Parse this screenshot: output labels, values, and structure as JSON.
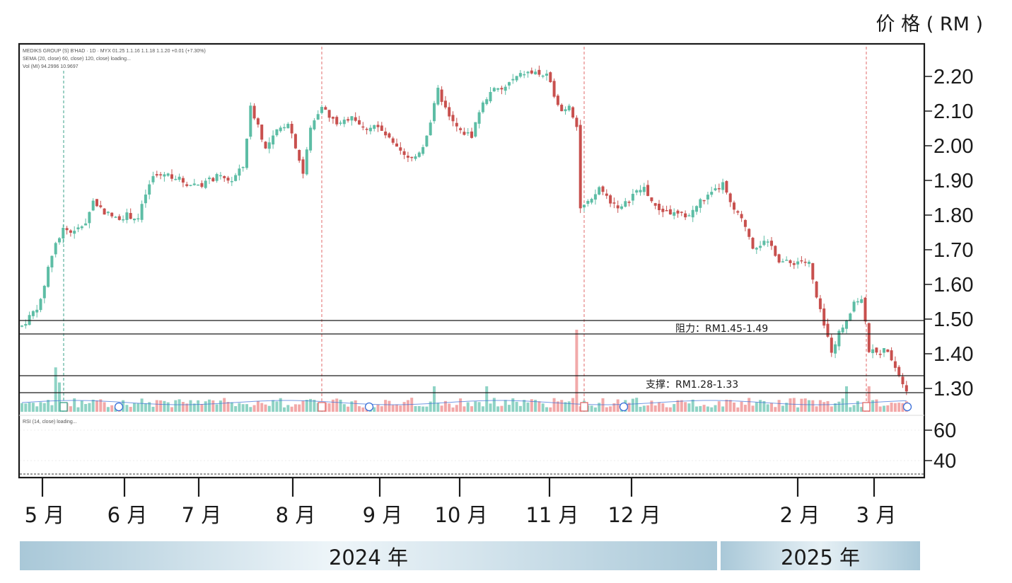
{
  "price_unit_label": "价 格 ( RM )",
  "chart_header": [
    "MEDIKS GROUP (S) B'HAD · 1D · MYX 01.25 1.1.16 1.1.18 1.1.20 +0.01 (+7.30%)",
    "SEMA (20, close) 60, close) 120, close) loading...",
    "Vol (MI) 94.2996 10.9697"
  ],
  "rsi_header": "RSI (14, close) loading...",
  "annotations": {
    "resistance": "阻力：RM1.45-1.49",
    "support": "支撑：RM1.28-1.33"
  },
  "event_markers": [
    "E",
    "D",
    "D",
    "D",
    "D",
    "D",
    "D",
    "D",
    "D",
    "D",
    "E"
  ],
  "year_bands": [
    {
      "label": "2024 年"
    },
    {
      "label": "2025 年"
    }
  ],
  "colors": {
    "up": "#5dbda5",
    "down": "#c8504e",
    "vol_up": "#8fd3c5",
    "vol_down": "#f2a9a9",
    "marker": "#3a6fd8",
    "band_light": "#e8f2f7",
    "band_dark": "#a9c8d8"
  },
  "chart_data": {
    "type": "candlestick",
    "title": "",
    "xlabel": "",
    "ylabel": "价格 (RM)",
    "ylim": [
      1.28,
      2.25
    ],
    "price_ticks": [
      "2.20",
      "2.10",
      "2.00",
      "1.90",
      "1.80",
      "1.70",
      "1.60",
      "1.50",
      "1.40",
      "1.30"
    ],
    "rsi_ticks": [
      "60",
      "40"
    ],
    "month_labels": [
      "5 月",
      "6 月",
      "7 月",
      "8 月",
      "9 月",
      "10 月",
      "11 月",
      "12 月",
      "2 月",
      "3 月"
    ],
    "resistance_zone": [
      1.45,
      1.49
    ],
    "support_zone": [
      1.28,
      1.33
    ],
    "grid": false,
    "price_path": [
      {
        "t": 0,
        "v": 1.48
      },
      {
        "t": 3,
        "v": 1.52
      },
      {
        "t": 5,
        "v": 1.55
      },
      {
        "t": 7,
        "v": 1.65
      },
      {
        "t": 9,
        "v": 1.72
      },
      {
        "t": 11,
        "v": 1.76
      },
      {
        "t": 14,
        "v": 1.75
      },
      {
        "t": 17,
        "v": 1.78
      },
      {
        "t": 19,
        "v": 1.84
      },
      {
        "t": 22,
        "v": 1.81
      },
      {
        "t": 25,
        "v": 1.79
      },
      {
        "t": 28,
        "v": 1.8
      },
      {
        "t": 31,
        "v": 1.79
      },
      {
        "t": 33,
        "v": 1.86
      },
      {
        "t": 35,
        "v": 1.91
      },
      {
        "t": 38,
        "v": 1.92
      },
      {
        "t": 41,
        "v": 1.91
      },
      {
        "t": 44,
        "v": 1.89
      },
      {
        "t": 48,
        "v": 1.89
      },
      {
        "t": 52,
        "v": 1.91
      },
      {
        "t": 56,
        "v": 1.9
      },
      {
        "t": 59,
        "v": 1.94
      },
      {
        "t": 61,
        "v": 2.11
      },
      {
        "t": 63,
        "v": 2.06
      },
      {
        "t": 65,
        "v": 1.99
      },
      {
        "t": 68,
        "v": 2.04
      },
      {
        "t": 71,
        "v": 2.07
      },
      {
        "t": 73,
        "v": 2.0
      },
      {
        "t": 75,
        "v": 1.92
      },
      {
        "t": 77,
        "v": 2.05
      },
      {
        "t": 80,
        "v": 2.12
      },
      {
        "t": 82,
        "v": 2.08
      },
      {
        "t": 85,
        "v": 2.06
      },
      {
        "t": 88,
        "v": 2.09
      },
      {
        "t": 91,
        "v": 2.05
      },
      {
        "t": 94,
        "v": 2.06
      },
      {
        "t": 97,
        "v": 2.03
      },
      {
        "t": 100,
        "v": 1.99
      },
      {
        "t": 103,
        "v": 1.96
      },
      {
        "t": 105,
        "v": 1.97
      },
      {
        "t": 107,
        "v": 2.0
      },
      {
        "t": 109,
        "v": 2.07
      },
      {
        "t": 111,
        "v": 2.16
      },
      {
        "t": 114,
        "v": 2.08
      },
      {
        "t": 117,
        "v": 2.04
      },
      {
        "t": 120,
        "v": 2.03
      },
      {
        "t": 122,
        "v": 2.1
      },
      {
        "t": 125,
        "v": 2.16
      },
      {
        "t": 128,
        "v": 2.16
      },
      {
        "t": 131,
        "v": 2.19
      },
      {
        "t": 134,
        "v": 2.21
      },
      {
        "t": 137,
        "v": 2.21
      },
      {
        "t": 140,
        "v": 2.2
      },
      {
        "t": 142,
        "v": 2.15
      },
      {
        "t": 144,
        "v": 2.1
      },
      {
        "t": 146,
        "v": 2.12
      },
      {
        "t": 148,
        "v": 2.06
      },
      {
        "t": 149,
        "v": 1.82
      },
      {
        "t": 152,
        "v": 1.84
      },
      {
        "t": 154,
        "v": 1.88
      },
      {
        "t": 157,
        "v": 1.84
      },
      {
        "t": 160,
        "v": 1.82
      },
      {
        "t": 163,
        "v": 1.86
      },
      {
        "t": 166,
        "v": 1.88
      },
      {
        "t": 169,
        "v": 1.82
      },
      {
        "t": 172,
        "v": 1.81
      },
      {
        "t": 175,
        "v": 1.8
      },
      {
        "t": 178,
        "v": 1.8
      },
      {
        "t": 181,
        "v": 1.84
      },
      {
        "t": 184,
        "v": 1.86
      },
      {
        "t": 187,
        "v": 1.89
      },
      {
        "t": 189,
        "v": 1.83
      },
      {
        "t": 191,
        "v": 1.8
      },
      {
        "t": 193,
        "v": 1.77
      },
      {
        "t": 195,
        "v": 1.71
      },
      {
        "t": 198,
        "v": 1.72
      },
      {
        "t": 200,
        "v": 1.71
      },
      {
        "t": 202,
        "v": 1.67
      },
      {
        "t": 205,
        "v": 1.66
      },
      {
        "t": 208,
        "v": 1.67
      },
      {
        "t": 210,
        "v": 1.66
      },
      {
        "t": 212,
        "v": 1.56
      },
      {
        "t": 214,
        "v": 1.48
      },
      {
        "t": 216,
        "v": 1.41
      },
      {
        "t": 218,
        "v": 1.46
      },
      {
        "t": 220,
        "v": 1.5
      },
      {
        "t": 222,
        "v": 1.55
      },
      {
        "t": 224,
        "v": 1.56
      },
      {
        "t": 226,
        "v": 1.41
      },
      {
        "t": 228,
        "v": 1.4
      },
      {
        "t": 230,
        "v": 1.41
      },
      {
        "t": 232,
        "v": 1.39
      },
      {
        "t": 234,
        "v": 1.34
      },
      {
        "t": 236,
        "v": 1.3
      }
    ]
  }
}
